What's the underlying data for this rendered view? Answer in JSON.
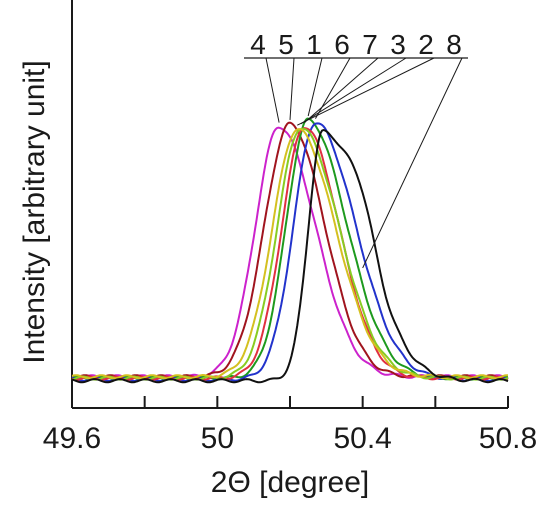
{
  "chart_data": {
    "type": "line",
    "title": "",
    "xlabel": "2Θ [degree]",
    "ylabel": "Intensity [arbitrary unit]",
    "xlim": [
      49.6,
      50.8
    ],
    "ylim": [
      0,
      1
    ],
    "x_tick_labels": [
      "49.6",
      "50",
      "50.4",
      "50.8"
    ],
    "x_tick_values": [
      49.6,
      50.0,
      50.4,
      50.8
    ],
    "x_minor_ticks": [
      49.8,
      50.2,
      50.6
    ],
    "grid": false,
    "legend": "labels above peaks, connected by leader lines",
    "label_order": [
      "4",
      "5",
      "1",
      "6",
      "7",
      "3",
      "2",
      "8"
    ],
    "series": [
      {
        "name": "4",
        "color": "#cc22cc",
        "peak": 50.17,
        "height": 0.975,
        "sigma_left": 0.065,
        "sigma_right": 0.1,
        "base": 0.02
      },
      {
        "name": "5",
        "color": "#a0141e",
        "peak": 50.2,
        "height": 0.985,
        "sigma_left": 0.07,
        "sigma_right": 0.095,
        "base": 0.02
      },
      {
        "name": "1",
        "color": "#1e9a1e",
        "peak": 50.25,
        "height": 1.0,
        "sigma_left": 0.06,
        "sigma_right": 0.105,
        "base": 0.015
      },
      {
        "name": "6",
        "color": "#2233cc",
        "peak": 50.27,
        "height": 0.99,
        "sigma_left": 0.06,
        "sigma_right": 0.11,
        "base": 0.01
      },
      {
        "name": "7",
        "color": "#e03040",
        "peak": 50.24,
        "height": 0.975,
        "sigma_left": 0.062,
        "sigma_right": 0.095,
        "base": 0.015
      },
      {
        "name": "3",
        "color": "#88cc22",
        "peak": 50.23,
        "height": 0.97,
        "sigma_left": 0.065,
        "sigma_right": 0.105,
        "base": 0.015
      },
      {
        "name": "2",
        "color": "#d4c020",
        "peak": 50.22,
        "height": 0.965,
        "sigma_left": 0.068,
        "sigma_right": 0.105,
        "base": 0.02
      },
      {
        "name": "8",
        "color": "#111111",
        "peak": 50.29,
        "height": 0.955,
        "sigma_left": 0.04,
        "sigma_right": 0.115,
        "base": 0.005
      }
    ]
  }
}
